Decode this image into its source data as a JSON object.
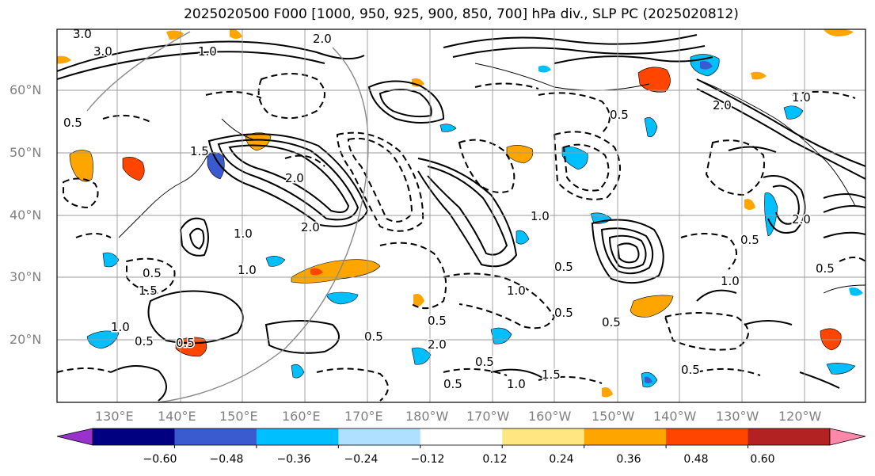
{
  "title": "2025020500 F000 [1000, 950, 925, 900, 850, 700] hPa div., SLP PC (2025020812)",
  "axes": {
    "lat_labels": [
      "60°N",
      "50°N",
      "40°N",
      "30°N",
      "20°N"
    ],
    "lon_labels": [
      "130°E",
      "140°E",
      "150°E",
      "160°E",
      "170°E",
      "180°W",
      "170°W",
      "160°W",
      "150°W",
      "140°W",
      "130°W",
      "120°W"
    ],
    "label_color": "#808080",
    "grid": true
  },
  "colorbar": {
    "ticks": [
      "−0.60",
      "−0.48",
      "−0.36",
      "−0.24",
      "−0.12",
      "0.12",
      "0.24",
      "0.36",
      "0.48",
      "0.60"
    ],
    "colors": [
      "#9932cc",
      "#000080",
      "#3a5bd0",
      "#00bfff",
      "#b0e0ff",
      "#ffffff",
      "#ffe680",
      "#ffa500",
      "#ff4500",
      "#b22222",
      "#ff88aa"
    ],
    "extend": "both"
  },
  "contour_labels": [
    "3.0",
    "3.0",
    "1.0",
    "2.0",
    "0.5",
    "1.5",
    "2.0",
    "2.0",
    "1.0",
    "0.5",
    "1.5",
    "1.0",
    "0.5",
    "0.5",
    "0.5",
    "2.0",
    "0.5",
    "1.0",
    "0.5",
    "1.0",
    "0.5",
    "0.5",
    "1.0",
    "2.0",
    "0.5",
    "1.0",
    "0.5",
    "0.5",
    "2.0",
    "0.5",
    "1.0",
    "0.5",
    "1.0",
    "1.5",
    "0.5"
  ]
}
